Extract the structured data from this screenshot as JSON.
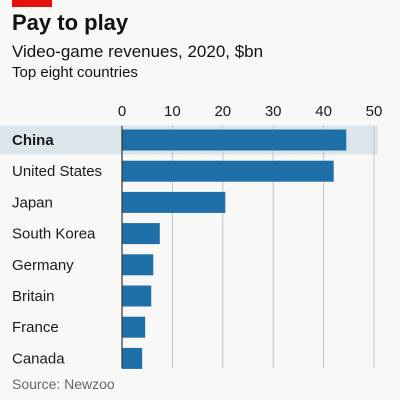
{
  "header": {
    "title": "Pay to play",
    "subtitle": "Video-game revenues, 2020, $bn",
    "note": "Top eight countries"
  },
  "footer": {
    "source": "Source: Newzoo"
  },
  "colors": {
    "accent": "#e3120b",
    "bar": "#1f6fa9",
    "highlight_row": "#dce5ea",
    "grid": "#bfc7cc",
    "text": "#1a1a1a"
  },
  "chart_data": {
    "type": "bar",
    "orientation": "horizontal",
    "categories": [
      "China",
      "United States",
      "Japan",
      "South Korea",
      "Germany",
      "Britain",
      "France",
      "Canada"
    ],
    "values": [
      44.5,
      42.0,
      20.5,
      7.5,
      6.2,
      5.8,
      4.6,
      4.0
    ],
    "highlight_category": "China",
    "xlim": [
      0,
      50
    ],
    "xticks": [
      0,
      10,
      20,
      30,
      40,
      50
    ],
    "xtick_labels": [
      "0",
      "10",
      "20",
      "30",
      "40",
      "50"
    ],
    "grid": true,
    "title": "Pay to play",
    "subtitle": "Video-game revenues, 2020, $bn",
    "xlabel": "",
    "ylabel": ""
  }
}
